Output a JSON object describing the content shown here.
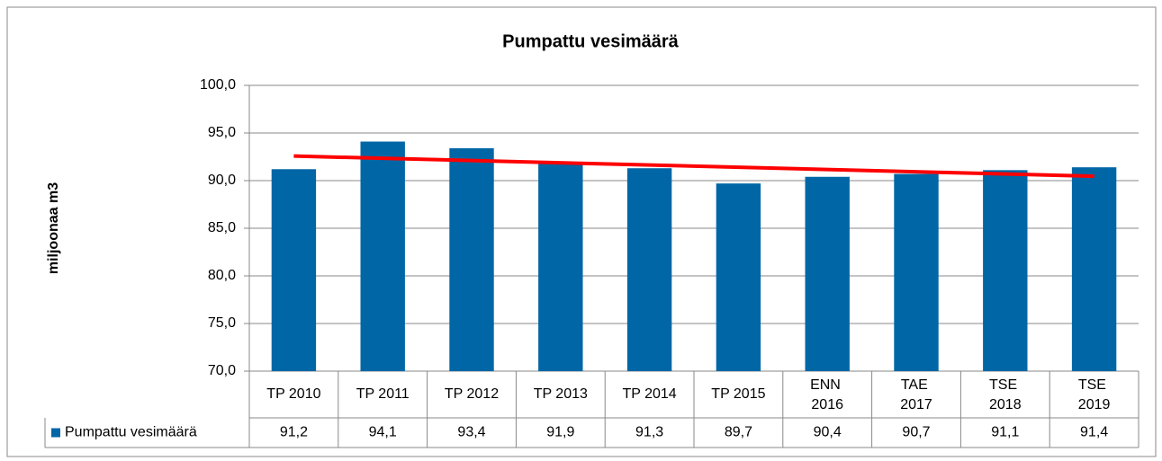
{
  "chart_data": {
    "type": "bar",
    "title": "Pumpattu vesimäärä",
    "y_label": "miljoonaa m3",
    "categories": [
      "TP 2010",
      "TP 2011",
      "TP 2012",
      "TP 2013",
      "TP 2014",
      "TP 2015",
      "ENN 2016",
      "TAE 2017",
      "TSE 2018",
      "TSE 2019"
    ],
    "series": [
      {
        "name": "Pumpattu vesimäärä",
        "color": "#0066a6",
        "values": [
          91.2,
          94.1,
          93.4,
          91.9,
          91.3,
          89.7,
          90.4,
          90.7,
          91.1,
          91.4
        ],
        "value_labels": [
          "91,2",
          "94,1",
          "93,4",
          "91,9",
          "91,3",
          "89,7",
          "90,4",
          "90,7",
          "91,1",
          "91,4"
        ]
      }
    ],
    "trendline": {
      "type": "linear",
      "color": "#ff0000"
    },
    "ylim": [
      70,
      100
    ],
    "yticks": [
      {
        "value": 70,
        "label": "70,0"
      },
      {
        "value": 75,
        "label": "75,0"
      },
      {
        "value": 80,
        "label": "80,0"
      },
      {
        "value": 85,
        "label": "85,0"
      },
      {
        "value": 90,
        "label": "90,0"
      },
      {
        "value": 95,
        "label": "95,0"
      },
      {
        "value": 100,
        "label": "100,0"
      }
    ],
    "grid": true,
    "data_table": true
  }
}
